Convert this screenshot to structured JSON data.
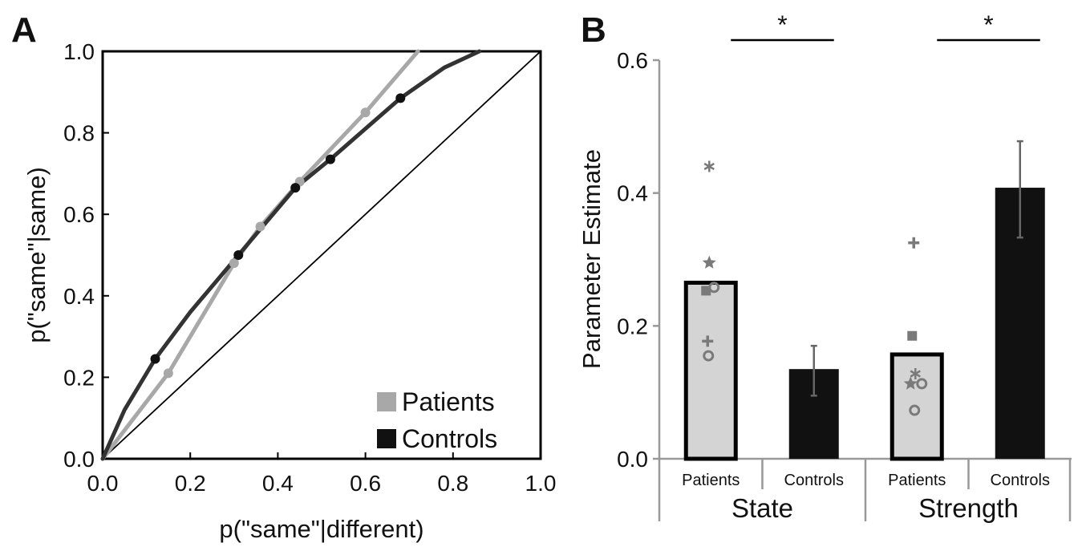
{
  "figure": {
    "panel_a_label": "A",
    "panel_b_label": "B"
  },
  "colors": {
    "patients_line": "#a8a8a8",
    "controls_line": "#333333",
    "controls_point": "#111111",
    "patients_bar": "#d4d4d4",
    "controls_bar": "#111111",
    "individual_marker": "#7a7a7a",
    "axis": "#000000",
    "bar_axis": "#999999"
  },
  "chart_data": [
    {
      "type": "line",
      "panel": "A",
      "xlabel": "p(\"same\"|different)",
      "ylabel": "p(\"same\"|same)",
      "xlim": [
        0,
        1
      ],
      "ylim": [
        0,
        1
      ],
      "x_ticks": [
        "0.0",
        "0.2",
        "0.4",
        "0.6",
        "0.8",
        "1.0"
      ],
      "y_ticks": [
        "0.0",
        "0.2",
        "0.4",
        "0.6",
        "0.8",
        "1.0"
      ],
      "grid": false,
      "legend_position": "bottom-right",
      "series": [
        {
          "name": "Patients",
          "color": "#a8a8a8",
          "points": [
            [
              0.15,
              0.21
            ],
            [
              0.3,
              0.48
            ],
            [
              0.36,
              0.57
            ],
            [
              0.45,
              0.68
            ],
            [
              0.6,
              0.85
            ]
          ],
          "curve": [
            [
              0.0,
              0.0
            ],
            [
              0.15,
              0.21
            ],
            [
              0.3,
              0.48
            ],
            [
              0.36,
              0.57
            ],
            [
              0.45,
              0.68
            ],
            [
              0.6,
              0.85
            ],
            [
              0.72,
              1.0
            ]
          ]
        },
        {
          "name": "Controls",
          "color": "#333333",
          "points": [
            [
              0.12,
              0.245
            ],
            [
              0.31,
              0.5
            ],
            [
              0.44,
              0.665
            ],
            [
              0.52,
              0.735
            ],
            [
              0.68,
              0.885
            ]
          ],
          "curve": [
            [
              0.0,
              0.0
            ],
            [
              0.05,
              0.12
            ],
            [
              0.12,
              0.245
            ],
            [
              0.2,
              0.36
            ],
            [
              0.31,
              0.5
            ],
            [
              0.44,
              0.665
            ],
            [
              0.52,
              0.735
            ],
            [
              0.6,
              0.81
            ],
            [
              0.68,
              0.885
            ],
            [
              0.78,
              0.96
            ],
            [
              0.86,
              1.0
            ]
          ]
        }
      ],
      "reference_line": [
        [
          0,
          0
        ],
        [
          1,
          1
        ]
      ]
    },
    {
      "type": "bar",
      "panel": "B",
      "ylabel": "Parameter Estimate",
      "ylim": [
        0,
        0.6
      ],
      "y_ticks": [
        "0.0",
        "0.2",
        "0.4",
        "0.6"
      ],
      "groups": [
        "State",
        "Strength"
      ],
      "categories": [
        "Patients",
        "Controls",
        "Patients",
        "Controls"
      ],
      "values": [
        0.265,
        0.135,
        0.157,
        0.408
      ],
      "error_bars": [
        null,
        [
          0.095,
          0.17
        ],
        null,
        [
          0.333,
          0.478
        ]
      ],
      "individual_points": [
        [
          {
            "marker": "asterisk",
            "value": 0.44
          },
          {
            "marker": "star",
            "value": 0.295
          },
          {
            "marker": "square",
            "value": 0.253
          },
          {
            "marker": "circle",
            "value": 0.258
          },
          {
            "marker": "plus",
            "value": 0.177
          },
          {
            "marker": "circle",
            "value": 0.155
          }
        ],
        [],
        [
          {
            "marker": "plus",
            "value": 0.325
          },
          {
            "marker": "square",
            "value": 0.185
          },
          {
            "marker": "asterisk",
            "value": 0.128
          },
          {
            "marker": "star",
            "value": 0.113
          },
          {
            "marker": "circle",
            "value": 0.113
          },
          {
            "marker": "circle",
            "value": 0.073
          }
        ],
        []
      ],
      "significance": [
        {
          "label": "*",
          "group": "State"
        },
        {
          "label": "*",
          "group": "Strength"
        }
      ]
    }
  ]
}
